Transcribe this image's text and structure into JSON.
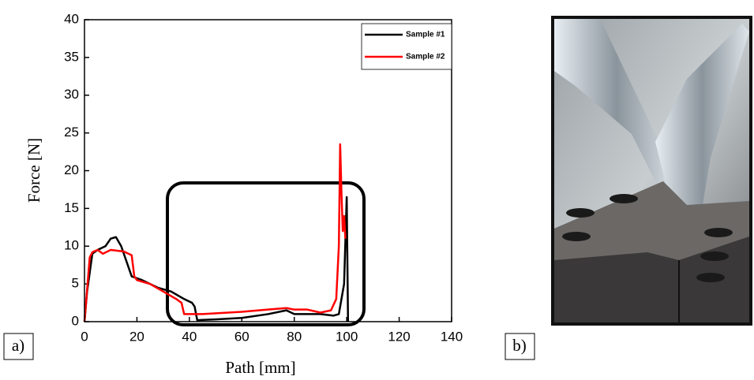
{
  "chart_data": {
    "type": "line",
    "xlabel": "Path [mm]",
    "ylabel": "Force [N]",
    "xlim": [
      0,
      140
    ],
    "xticks": [
      0,
      20,
      40,
      60,
      80,
      100,
      120,
      140
    ],
    "ylim": [
      0,
      40
    ],
    "yticks": [
      0,
      5,
      10,
      15,
      20,
      25,
      30,
      35,
      40
    ],
    "legend": "upper right",
    "series": [
      {
        "name": "Sample #1",
        "color": "#000000",
        "x": [
          0,
          1,
          3,
          5,
          8,
          10,
          12,
          14,
          16,
          18,
          22,
          28,
          33,
          38,
          41,
          42,
          43,
          50,
          60,
          70,
          77,
          80,
          90,
          95,
          97,
          99,
          100,
          100.5
        ],
        "values": [
          0,
          4,
          9,
          9.5,
          10,
          11,
          11.2,
          10,
          8,
          6,
          5.5,
          4.5,
          4,
          3,
          2.5,
          2,
          0.2,
          0.3,
          0.5,
          1,
          1.5,
          1,
          1,
          0.8,
          1,
          5,
          16.5,
          0
        ]
      },
      {
        "name": "Sample #2",
        "color": "#ff0000",
        "x": [
          0,
          2,
          3,
          5,
          7,
          10,
          15,
          18,
          19,
          20,
          25,
          30,
          35,
          37,
          38,
          45,
          60,
          70,
          77,
          80,
          85,
          90,
          94,
          96,
          97,
          97.5,
          98,
          98.5,
          99,
          99.5
        ],
        "values": [
          0,
          8.5,
          9.2,
          9.5,
          9,
          9.5,
          9.3,
          8.8,
          6,
          5.5,
          5,
          4,
          3,
          2.5,
          1,
          1,
          1.3,
          1.6,
          1.8,
          1.6,
          1.6,
          1.2,
          1.5,
          3,
          10,
          23.5,
          17,
          12,
          14,
          11
        ]
      }
    ]
  },
  "panel_labels": [
    "a)",
    "b)"
  ]
}
